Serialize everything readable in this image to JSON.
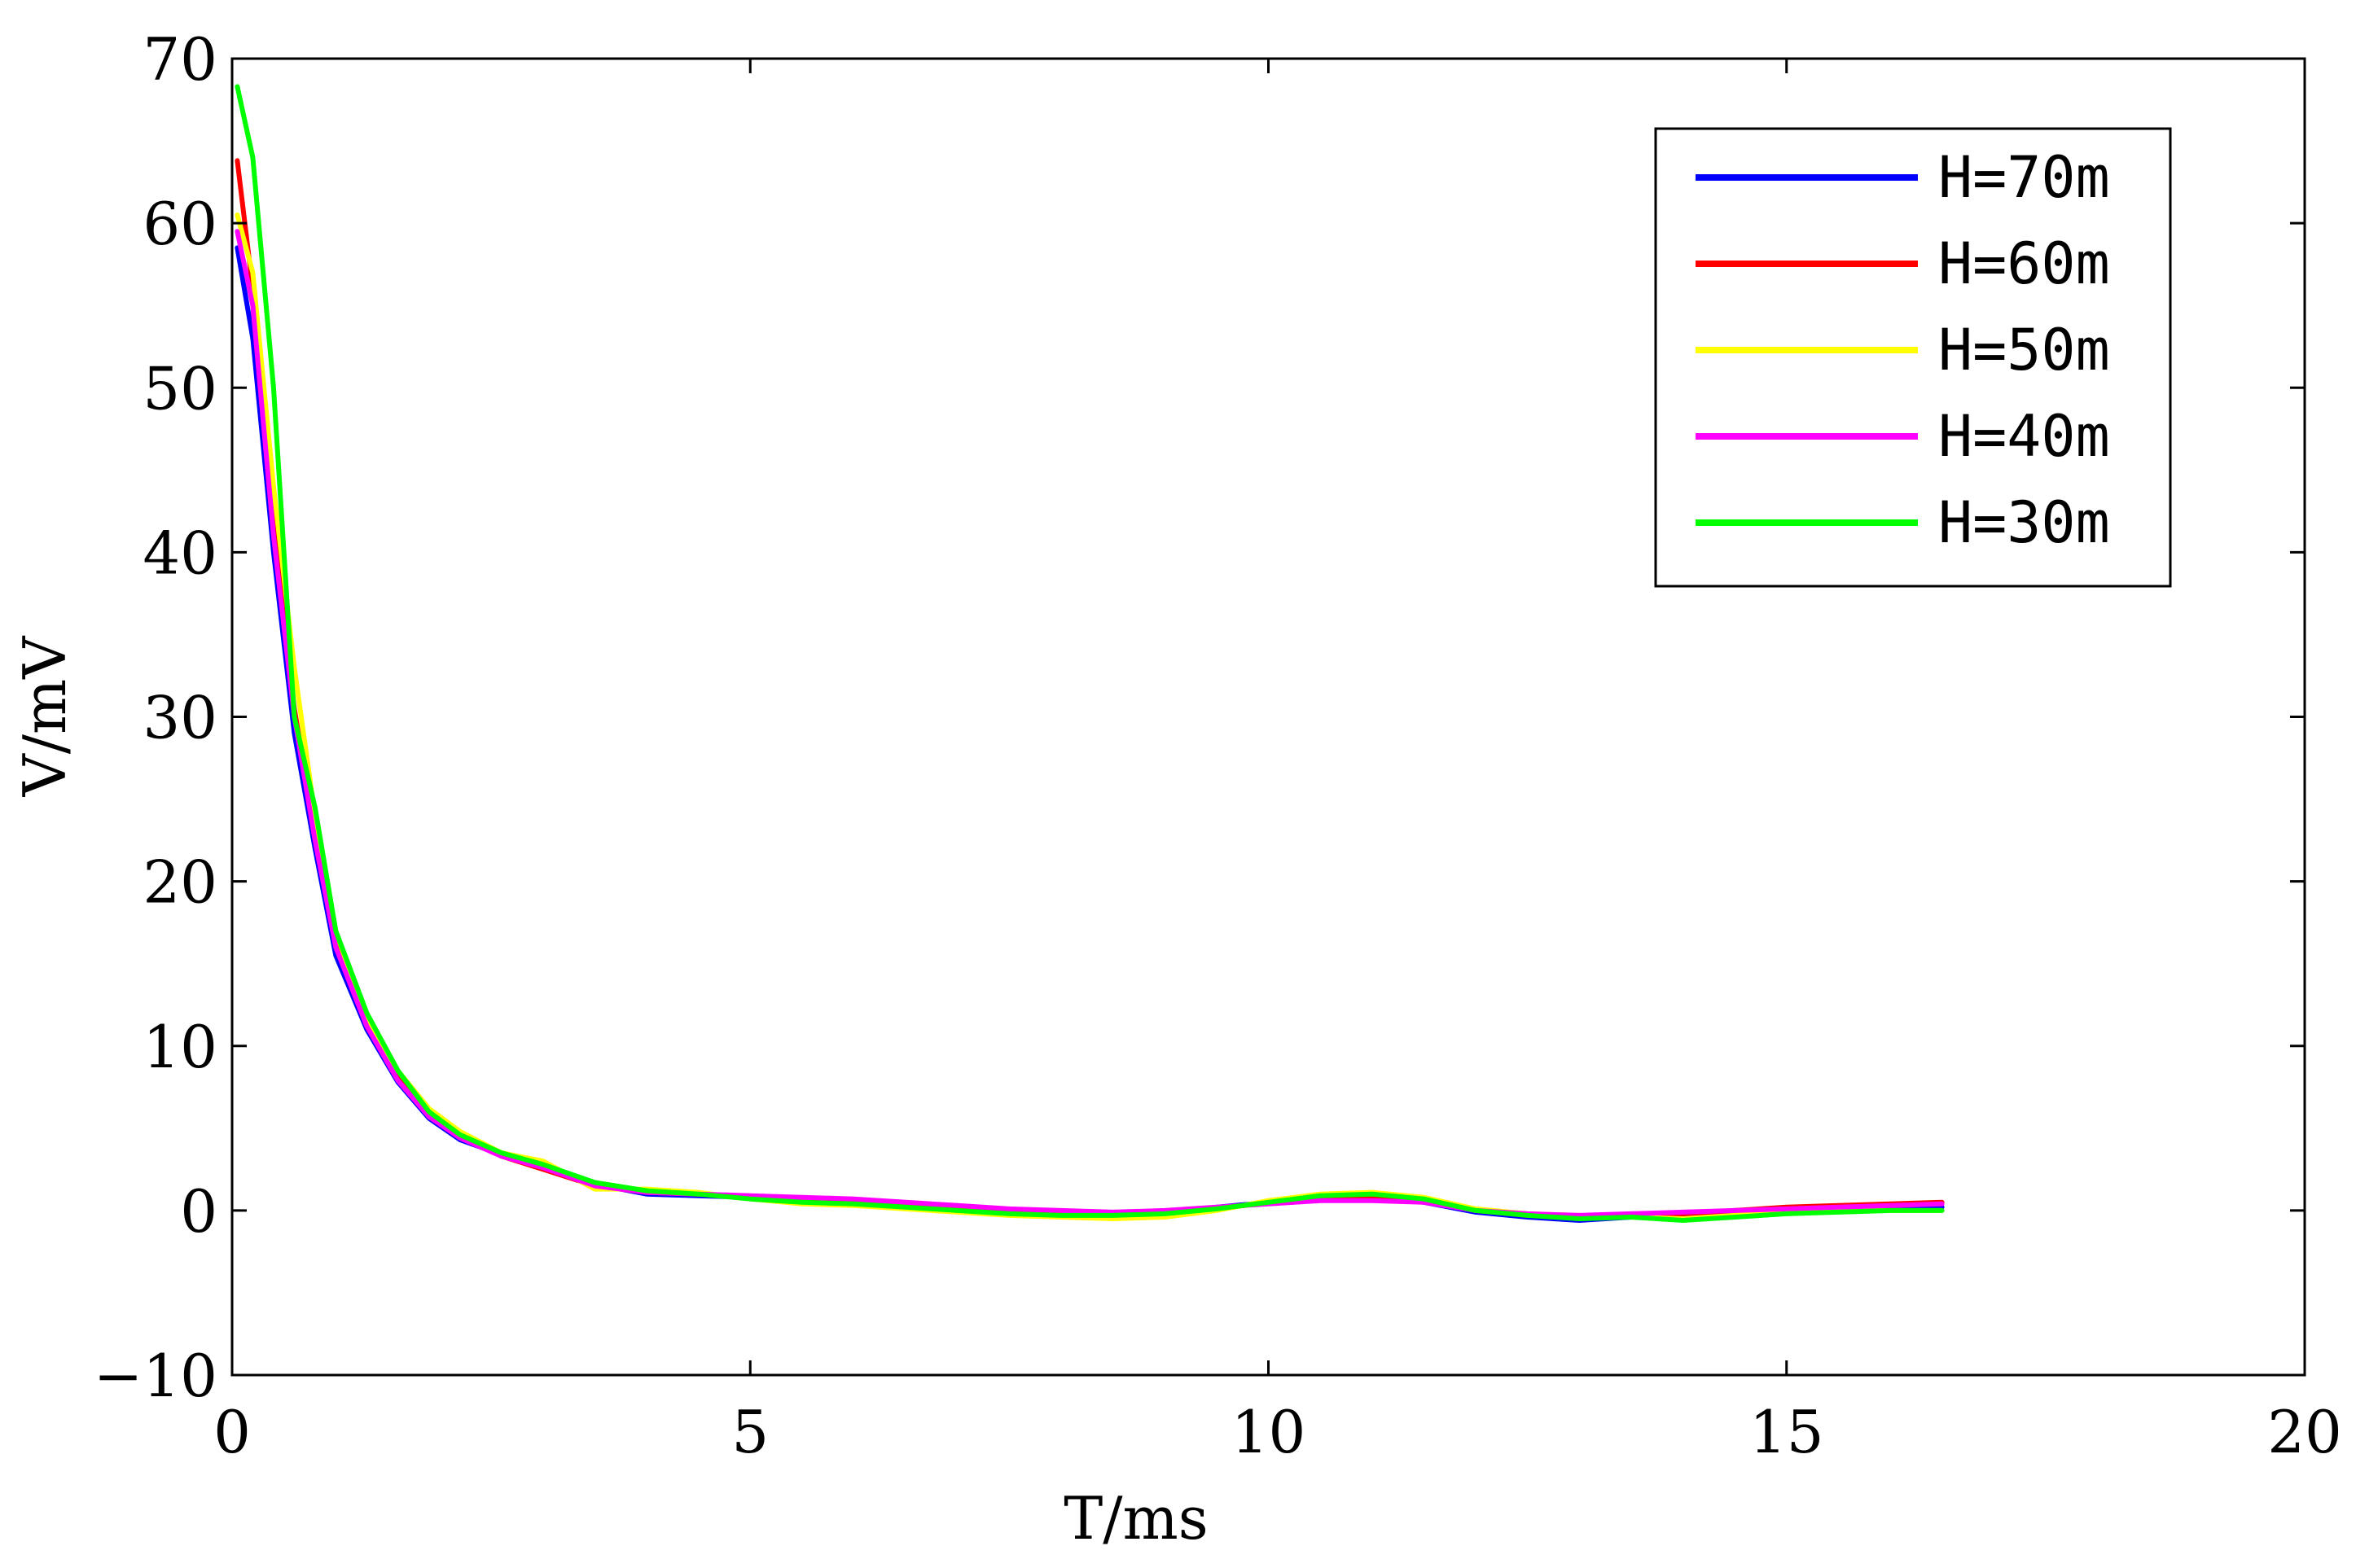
{
  "chart_data": {
    "type": "line",
    "title": "",
    "xlabel": "T/ms",
    "ylabel": "V/mV",
    "xlim": [
      0,
      20
    ],
    "ylim": [
      -10,
      70
    ],
    "xticks": [
      0,
      5,
      10,
      15,
      20
    ],
    "yticks": [
      -10,
      0,
      10,
      20,
      30,
      40,
      50,
      60,
      70
    ],
    "xtick_labels": [
      "0",
      "5",
      "10",
      "15",
      "20"
    ],
    "ytick_labels": [
      "−10",
      "0",
      "10",
      "20",
      "30",
      "40",
      "50",
      "60",
      "70"
    ],
    "grid": false,
    "legend_position": "top-right",
    "series": [
      {
        "name": "H=70m",
        "color": "#0000ff",
        "x": [
          0.05,
          0.2,
          0.4,
          0.6,
          0.8,
          1.0,
          1.3,
          1.6,
          1.9,
          2.2,
          2.6,
          3.0,
          3.5,
          4.0,
          4.5,
          5.0,
          5.5,
          6.0,
          6.5,
          7.0,
          7.5,
          8.0,
          8.5,
          9.0,
          9.5,
          10.0,
          10.5,
          11.0,
          11.5,
          12.0,
          12.5,
          13.0,
          13.5,
          14.0,
          14.5,
          15.0,
          15.5,
          16.0,
          16.5
        ],
        "values": [
          58.5,
          53.0,
          40.0,
          29.0,
          22.0,
          15.5,
          11.0,
          7.8,
          5.6,
          4.3,
          3.4,
          2.7,
          1.6,
          1.0,
          0.9,
          0.8,
          0.6,
          0.5,
          0.3,
          0.1,
          -0.1,
          -0.2,
          -0.2,
          -0.1,
          0.2,
          0.5,
          0.8,
          0.8,
          0.5,
          -0.1,
          -0.4,
          -0.6,
          -0.4,
          -0.3,
          -0.1,
          0.1,
          0.2,
          0.2,
          0.2
        ]
      },
      {
        "name": "H=60m",
        "color": "#ff0000",
        "x": [
          0.05,
          0.2,
          0.4,
          0.6,
          0.8,
          1.0,
          1.3,
          1.6,
          1.9,
          2.2,
          2.6,
          3.0,
          3.5,
          4.0,
          4.5,
          5.0,
          5.5,
          6.0,
          6.5,
          7.0,
          7.5,
          8.0,
          8.5,
          9.0,
          9.5,
          10.0,
          10.5,
          11.0,
          11.5,
          12.0,
          12.5,
          13.0,
          13.5,
          14.0,
          14.5,
          15.0,
          15.5,
          16.0,
          16.5
        ],
        "values": [
          63.8,
          56.0,
          42.0,
          30.5,
          23.0,
          16.5,
          11.5,
          8.0,
          5.8,
          4.5,
          3.3,
          2.5,
          1.5,
          1.1,
          1.0,
          0.8,
          0.7,
          0.6,
          0.4,
          0.2,
          0.0,
          -0.1,
          -0.2,
          -0.1,
          0.1,
          0.5,
          0.7,
          0.8,
          0.6,
          0.0,
          -0.3,
          -0.4,
          -0.3,
          -0.2,
          0.0,
          0.2,
          0.3,
          0.4,
          0.5
        ]
      },
      {
        "name": "H=50m",
        "color": "#ffff00",
        "x": [
          0.05,
          0.2,
          0.4,
          0.6,
          0.8,
          1.0,
          1.3,
          1.6,
          1.9,
          2.2,
          2.6,
          3.0,
          3.5,
          4.0,
          4.5,
          5.0,
          5.5,
          6.0,
          6.5,
          7.0,
          7.5,
          8.0,
          8.5,
          9.0,
          9.5,
          10.0,
          10.5,
          11.0,
          11.5,
          12.0,
          12.5,
          13.0,
          13.5,
          14.0,
          14.5,
          15.0,
          15.5,
          16.0,
          16.5
        ],
        "values": [
          60.5,
          57.0,
          44.0,
          33.0,
          24.0,
          17.0,
          11.5,
          8.5,
          6.2,
          4.8,
          3.5,
          3.0,
          1.3,
          1.3,
          1.1,
          0.7,
          0.4,
          0.3,
          0.1,
          -0.1,
          -0.3,
          -0.4,
          -0.5,
          -0.4,
          0.0,
          0.6,
          1.0,
          1.1,
          0.8,
          0.1,
          -0.2,
          -0.3,
          -0.4,
          -0.5,
          -0.3,
          -0.1,
          0.0,
          0.0,
          0.0
        ]
      },
      {
        "name": "H=40m",
        "color": "#ff00ff",
        "x": [
          0.05,
          0.2,
          0.4,
          0.6,
          0.8,
          1.0,
          1.3,
          1.6,
          1.9,
          2.2,
          2.6,
          3.0,
          3.5,
          4.0,
          4.5,
          5.0,
          5.5,
          6.0,
          6.5,
          7.0,
          7.5,
          8.0,
          8.5,
          9.0,
          9.5,
          10.0,
          10.5,
          11.0,
          11.5,
          12.0,
          12.5,
          13.0,
          13.5,
          14.0,
          14.5,
          15.0,
          15.5,
          16.0,
          16.5
        ],
        "values": [
          59.5,
          55.0,
          41.0,
          30.0,
          22.5,
          16.0,
          11.2,
          7.9,
          5.7,
          4.4,
          3.3,
          2.6,
          1.5,
          1.1,
          1.0,
          0.9,
          0.8,
          0.7,
          0.5,
          0.3,
          0.1,
          0.0,
          -0.1,
          0.0,
          0.2,
          0.4,
          0.6,
          0.6,
          0.5,
          0.0,
          -0.2,
          -0.3,
          -0.2,
          -0.1,
          0.0,
          0.1,
          0.2,
          0.3,
          0.4
        ]
      },
      {
        "name": "H=30m",
        "color": "#00ff00",
        "x": [
          0.05,
          0.2,
          0.4,
          0.6,
          0.8,
          1.0,
          1.3,
          1.6,
          1.9,
          2.2,
          2.6,
          3.0,
          3.5,
          4.0,
          4.5,
          5.0,
          5.5,
          6.0,
          6.5,
          7.0,
          7.5,
          8.0,
          8.5,
          9.0,
          9.5,
          10.0,
          10.5,
          11.0,
          11.5,
          12.0,
          12.5,
          13.0,
          13.5,
          14.0,
          14.5,
          15.0,
          15.5,
          16.0,
          16.5
        ],
        "values": [
          68.3,
          64.0,
          50.0,
          30.0,
          24.5,
          17.0,
          12.0,
          8.5,
          6.0,
          4.6,
          3.5,
          2.8,
          1.7,
          1.2,
          1.0,
          0.7,
          0.5,
          0.4,
          0.2,
          0.0,
          -0.2,
          -0.3,
          -0.3,
          -0.2,
          0.1,
          0.5,
          0.9,
          1.0,
          0.7,
          0.0,
          -0.3,
          -0.5,
          -0.4,
          -0.6,
          -0.4,
          -0.2,
          -0.1,
          0.0,
          0.0
        ]
      }
    ]
  }
}
